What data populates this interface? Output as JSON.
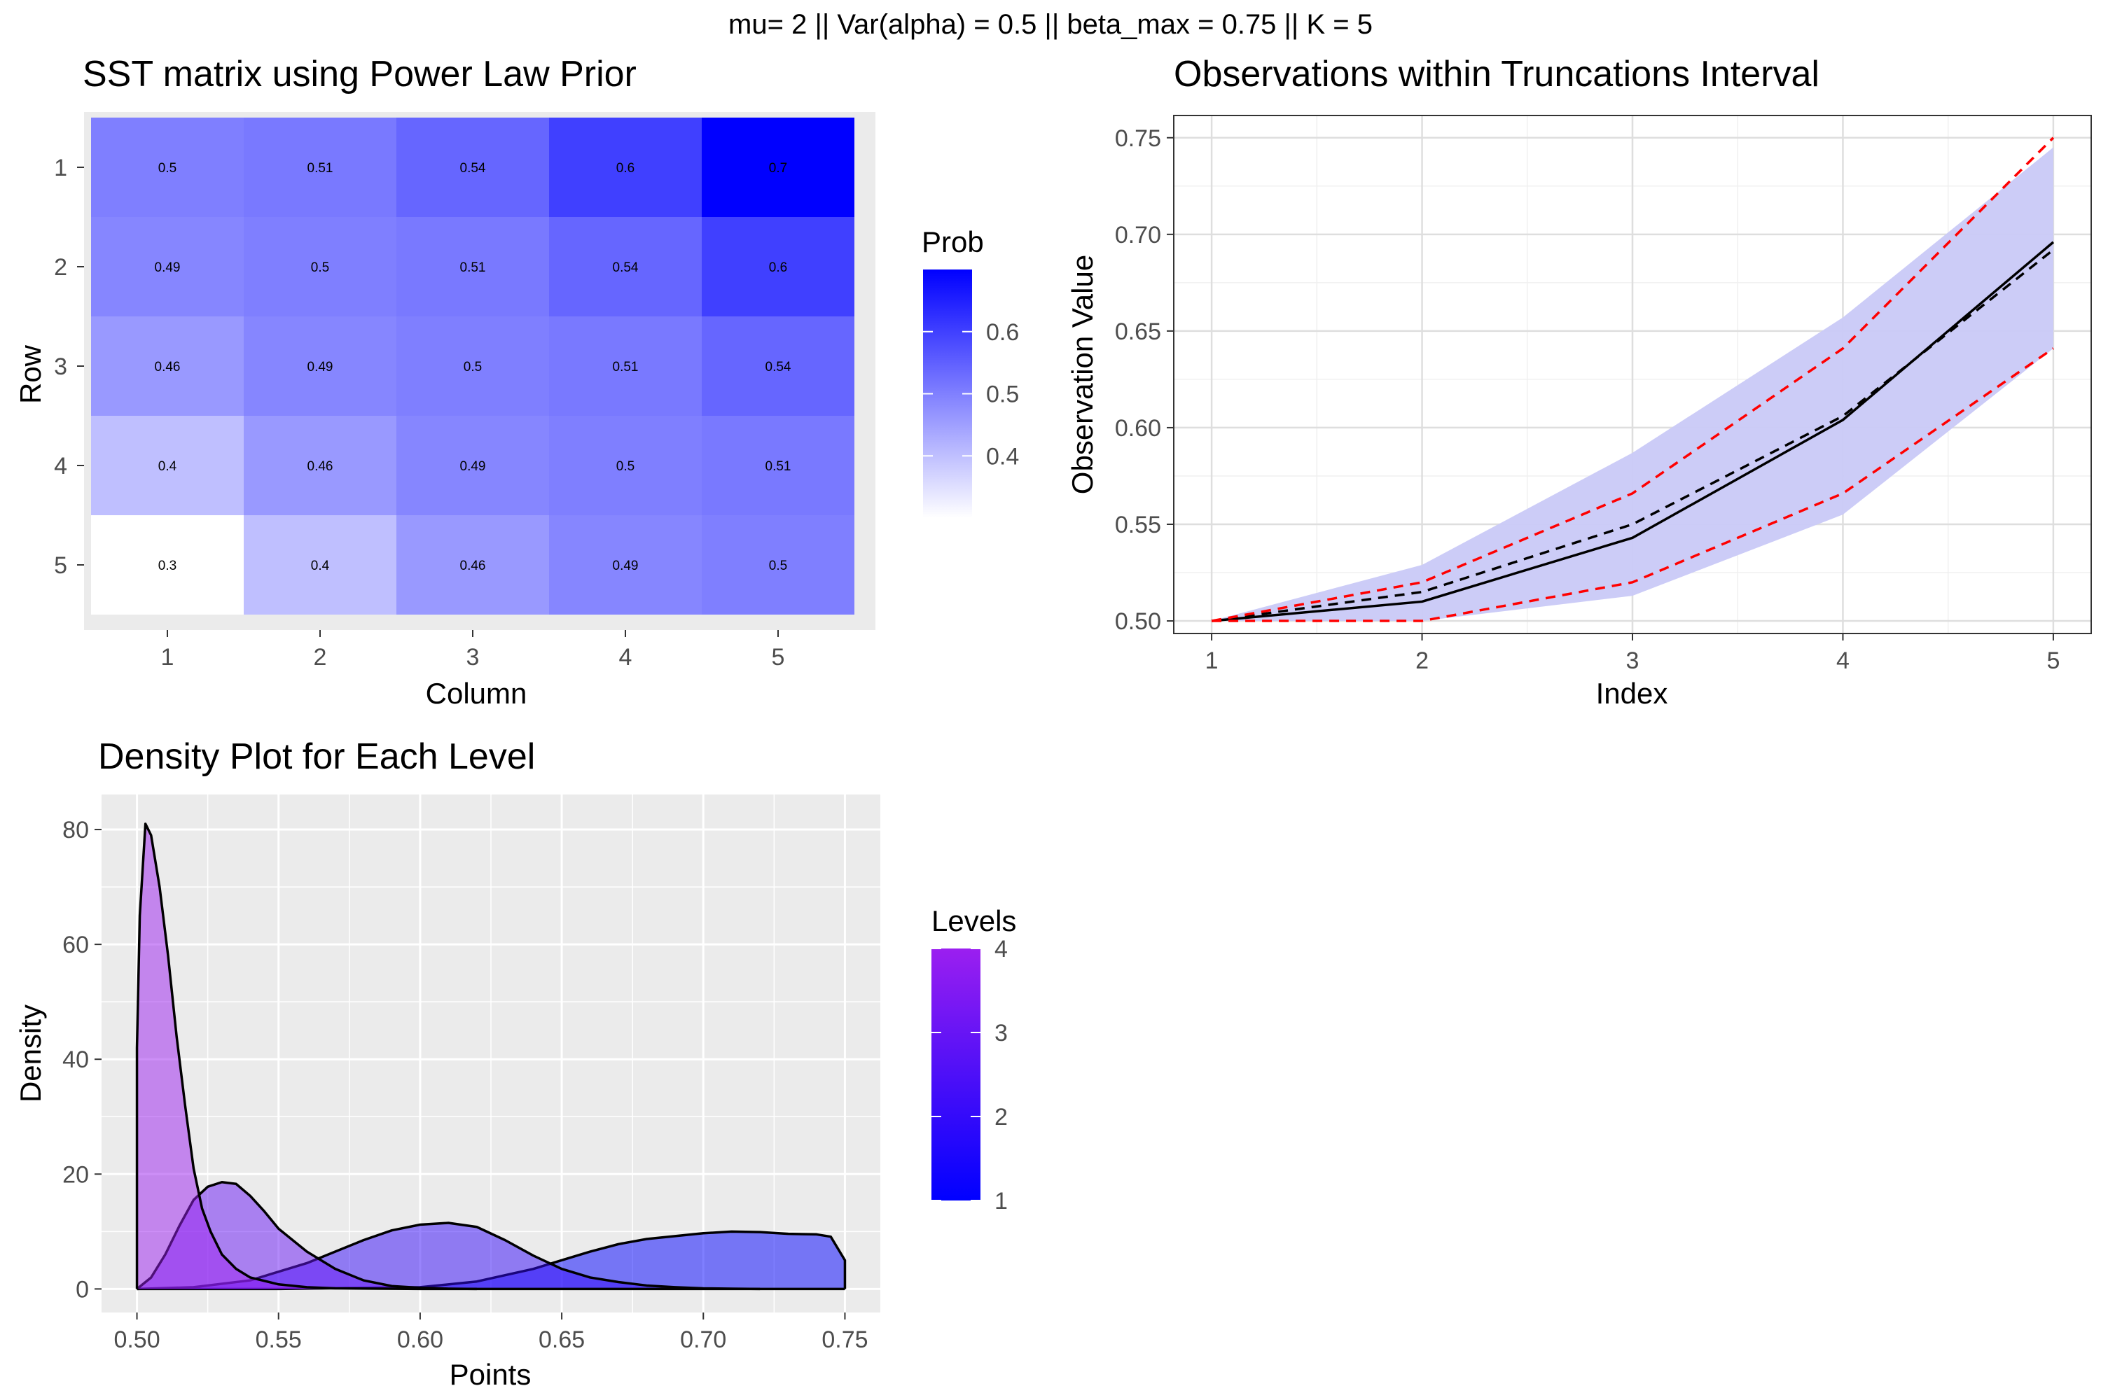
{
  "figure": {
    "suptitle": "mu=  2 || Var(alpha) = 0.5 || beta_max = 0.75 || K = 5"
  },
  "heatmap": {
    "title": "SST matrix using Power Law Prior",
    "xlabel": "Column",
    "ylabel": "Row",
    "legend_title": "Prob",
    "legend_ticks": [
      "0.4",
      "0.5",
      "0.6"
    ],
    "x_ticks": [
      "1",
      "2",
      "3",
      "4",
      "5"
    ],
    "y_ticks": [
      "1",
      "2",
      "3",
      "4",
      "5"
    ],
    "colors": {
      "low": "#ffffff",
      "high": "#0000ff",
      "panel_bg": "#ebebeb"
    }
  },
  "lineplot": {
    "title": "Observations within Truncations Interval",
    "xlabel": "Index",
    "ylabel": "Observation Value",
    "x_ticks": [
      "1",
      "2",
      "3",
      "4",
      "5"
    ],
    "y_ticks": [
      "0.50",
      "0.55",
      "0.60",
      "0.65",
      "0.70",
      "0.75"
    ],
    "colors": {
      "band": "#c9c9f7",
      "bounds": "#ff0000",
      "line": "#000000"
    }
  },
  "density": {
    "title": "Density Plot for Each Level",
    "xlabel": "Points",
    "ylabel": "Density",
    "legend_title": "Levels",
    "legend_ticks": [
      "1",
      "2",
      "3",
      "4"
    ],
    "x_ticks": [
      "0.50",
      "0.55",
      "0.60",
      "0.65",
      "0.70",
      "0.75"
    ],
    "y_ticks": [
      "0",
      "20",
      "40",
      "60",
      "80"
    ],
    "colors": {
      "low": "#0000ff",
      "high": "#9b1ff0",
      "panel_bg": "#ebebeb"
    }
  },
  "chart_data": [
    {
      "type": "heatmap",
      "title": "SST matrix using Power Law Prior",
      "xlabel": "Column",
      "ylabel": "Row",
      "rows": [
        1,
        2,
        3,
        4,
        5
      ],
      "columns": [
        1,
        2,
        3,
        4,
        5
      ],
      "values": [
        [
          0.5,
          0.51,
          0.54,
          0.6,
          0.7
        ],
        [
          0.49,
          0.5,
          0.51,
          0.54,
          0.6
        ],
        [
          0.46,
          0.49,
          0.5,
          0.51,
          0.54
        ],
        [
          0.4,
          0.46,
          0.49,
          0.5,
          0.51
        ],
        [
          0.3,
          0.4,
          0.46,
          0.49,
          0.5
        ]
      ],
      "legend_title": "Prob",
      "color_range": [
        0.3,
        0.7
      ]
    },
    {
      "type": "line",
      "title": "Observations within Truncations Interval",
      "xlabel": "Index",
      "ylabel": "Observation Value",
      "x": [
        1,
        2,
        3,
        4,
        5
      ],
      "xlim": [
        0.82,
        5.18
      ],
      "ylim": [
        0.4935,
        0.7615
      ],
      "band": {
        "lower": [
          0.5,
          0.5,
          0.513,
          0.555,
          0.641
        ],
        "upper": [
          0.5,
          0.529,
          0.587,
          0.657,
          0.745
        ]
      },
      "series": [
        {
          "style": "solid",
          "values": [
            0.5,
            0.51,
            0.543,
            0.604,
            0.696
          ]
        },
        {
          "style": "dashed",
          "values": [
            0.5,
            0.515,
            0.55,
            0.606,
            0.692
          ]
        },
        {
          "style": "red-dashed",
          "values": [
            0.5,
            0.52,
            0.566,
            0.641,
            0.75
          ]
        },
        {
          "style": "red-dashed",
          "values": [
            0.5,
            0.5,
            0.52,
            0.566,
            0.641
          ]
        }
      ]
    },
    {
      "type": "area",
      "title": "Density Plot for Each Level",
      "xlabel": "Points",
      "ylabel": "Density",
      "xlim": [
        0.4875,
        0.7625
      ],
      "ylim": [
        -4.1,
        86.1
      ],
      "legend_title": "Levels",
      "series": [
        {
          "level": 1,
          "x": [
            0.5,
            0.55,
            0.6,
            0.62,
            0.64,
            0.65,
            0.66,
            0.67,
            0.68,
            0.69,
            0.7,
            0.71,
            0.72,
            0.73,
            0.74,
            0.745,
            0.75
          ],
          "values": [
            0,
            0,
            0.3,
            1.3,
            3.5,
            5,
            6.5,
            7.8,
            8.7,
            9.2,
            9.7,
            10,
            9.9,
            9.6,
            9.5,
            9.1,
            5
          ]
        },
        {
          "level": 2,
          "x": [
            0.5,
            0.52,
            0.54,
            0.56,
            0.58,
            0.59,
            0.6,
            0.61,
            0.62,
            0.63,
            0.64,
            0.65,
            0.66,
            0.67,
            0.68,
            0.69,
            0.7,
            0.71,
            0.72
          ],
          "values": [
            0,
            0.3,
            1.5,
            4.5,
            8.5,
            10.2,
            11.2,
            11.5,
            10.8,
            8.5,
            5.8,
            3.5,
            2,
            1.2,
            0.6,
            0.3,
            0.1,
            0.05,
            0
          ]
        },
        {
          "level": 3,
          "x": [
            0.5,
            0.505,
            0.51,
            0.515,
            0.52,
            0.525,
            0.53,
            0.535,
            0.54,
            0.545,
            0.55,
            0.56,
            0.57,
            0.58,
            0.59,
            0.6,
            0.61,
            0.62
          ],
          "values": [
            0,
            2,
            6,
            11,
            15.5,
            17.8,
            18.6,
            18.3,
            16.2,
            13.5,
            10.5,
            6.5,
            3.5,
            1.5,
            0.5,
            0.2,
            0.05,
            0
          ]
        },
        {
          "level": 4,
          "x": [
            0.5,
            0.501,
            0.503,
            0.505,
            0.508,
            0.511,
            0.514,
            0.517,
            0.52,
            0.523,
            0.526,
            0.53,
            0.535,
            0.54,
            0.55,
            0.56,
            0.57,
            0.6,
            0.65,
            0.7,
            0.75
          ],
          "values": [
            42,
            65,
            81,
            79,
            70,
            58,
            44,
            32,
            21,
            14,
            10,
            6,
            3.5,
            2,
            0.8,
            0.3,
            0.1,
            0,
            0,
            0,
            0
          ]
        }
      ]
    }
  ]
}
